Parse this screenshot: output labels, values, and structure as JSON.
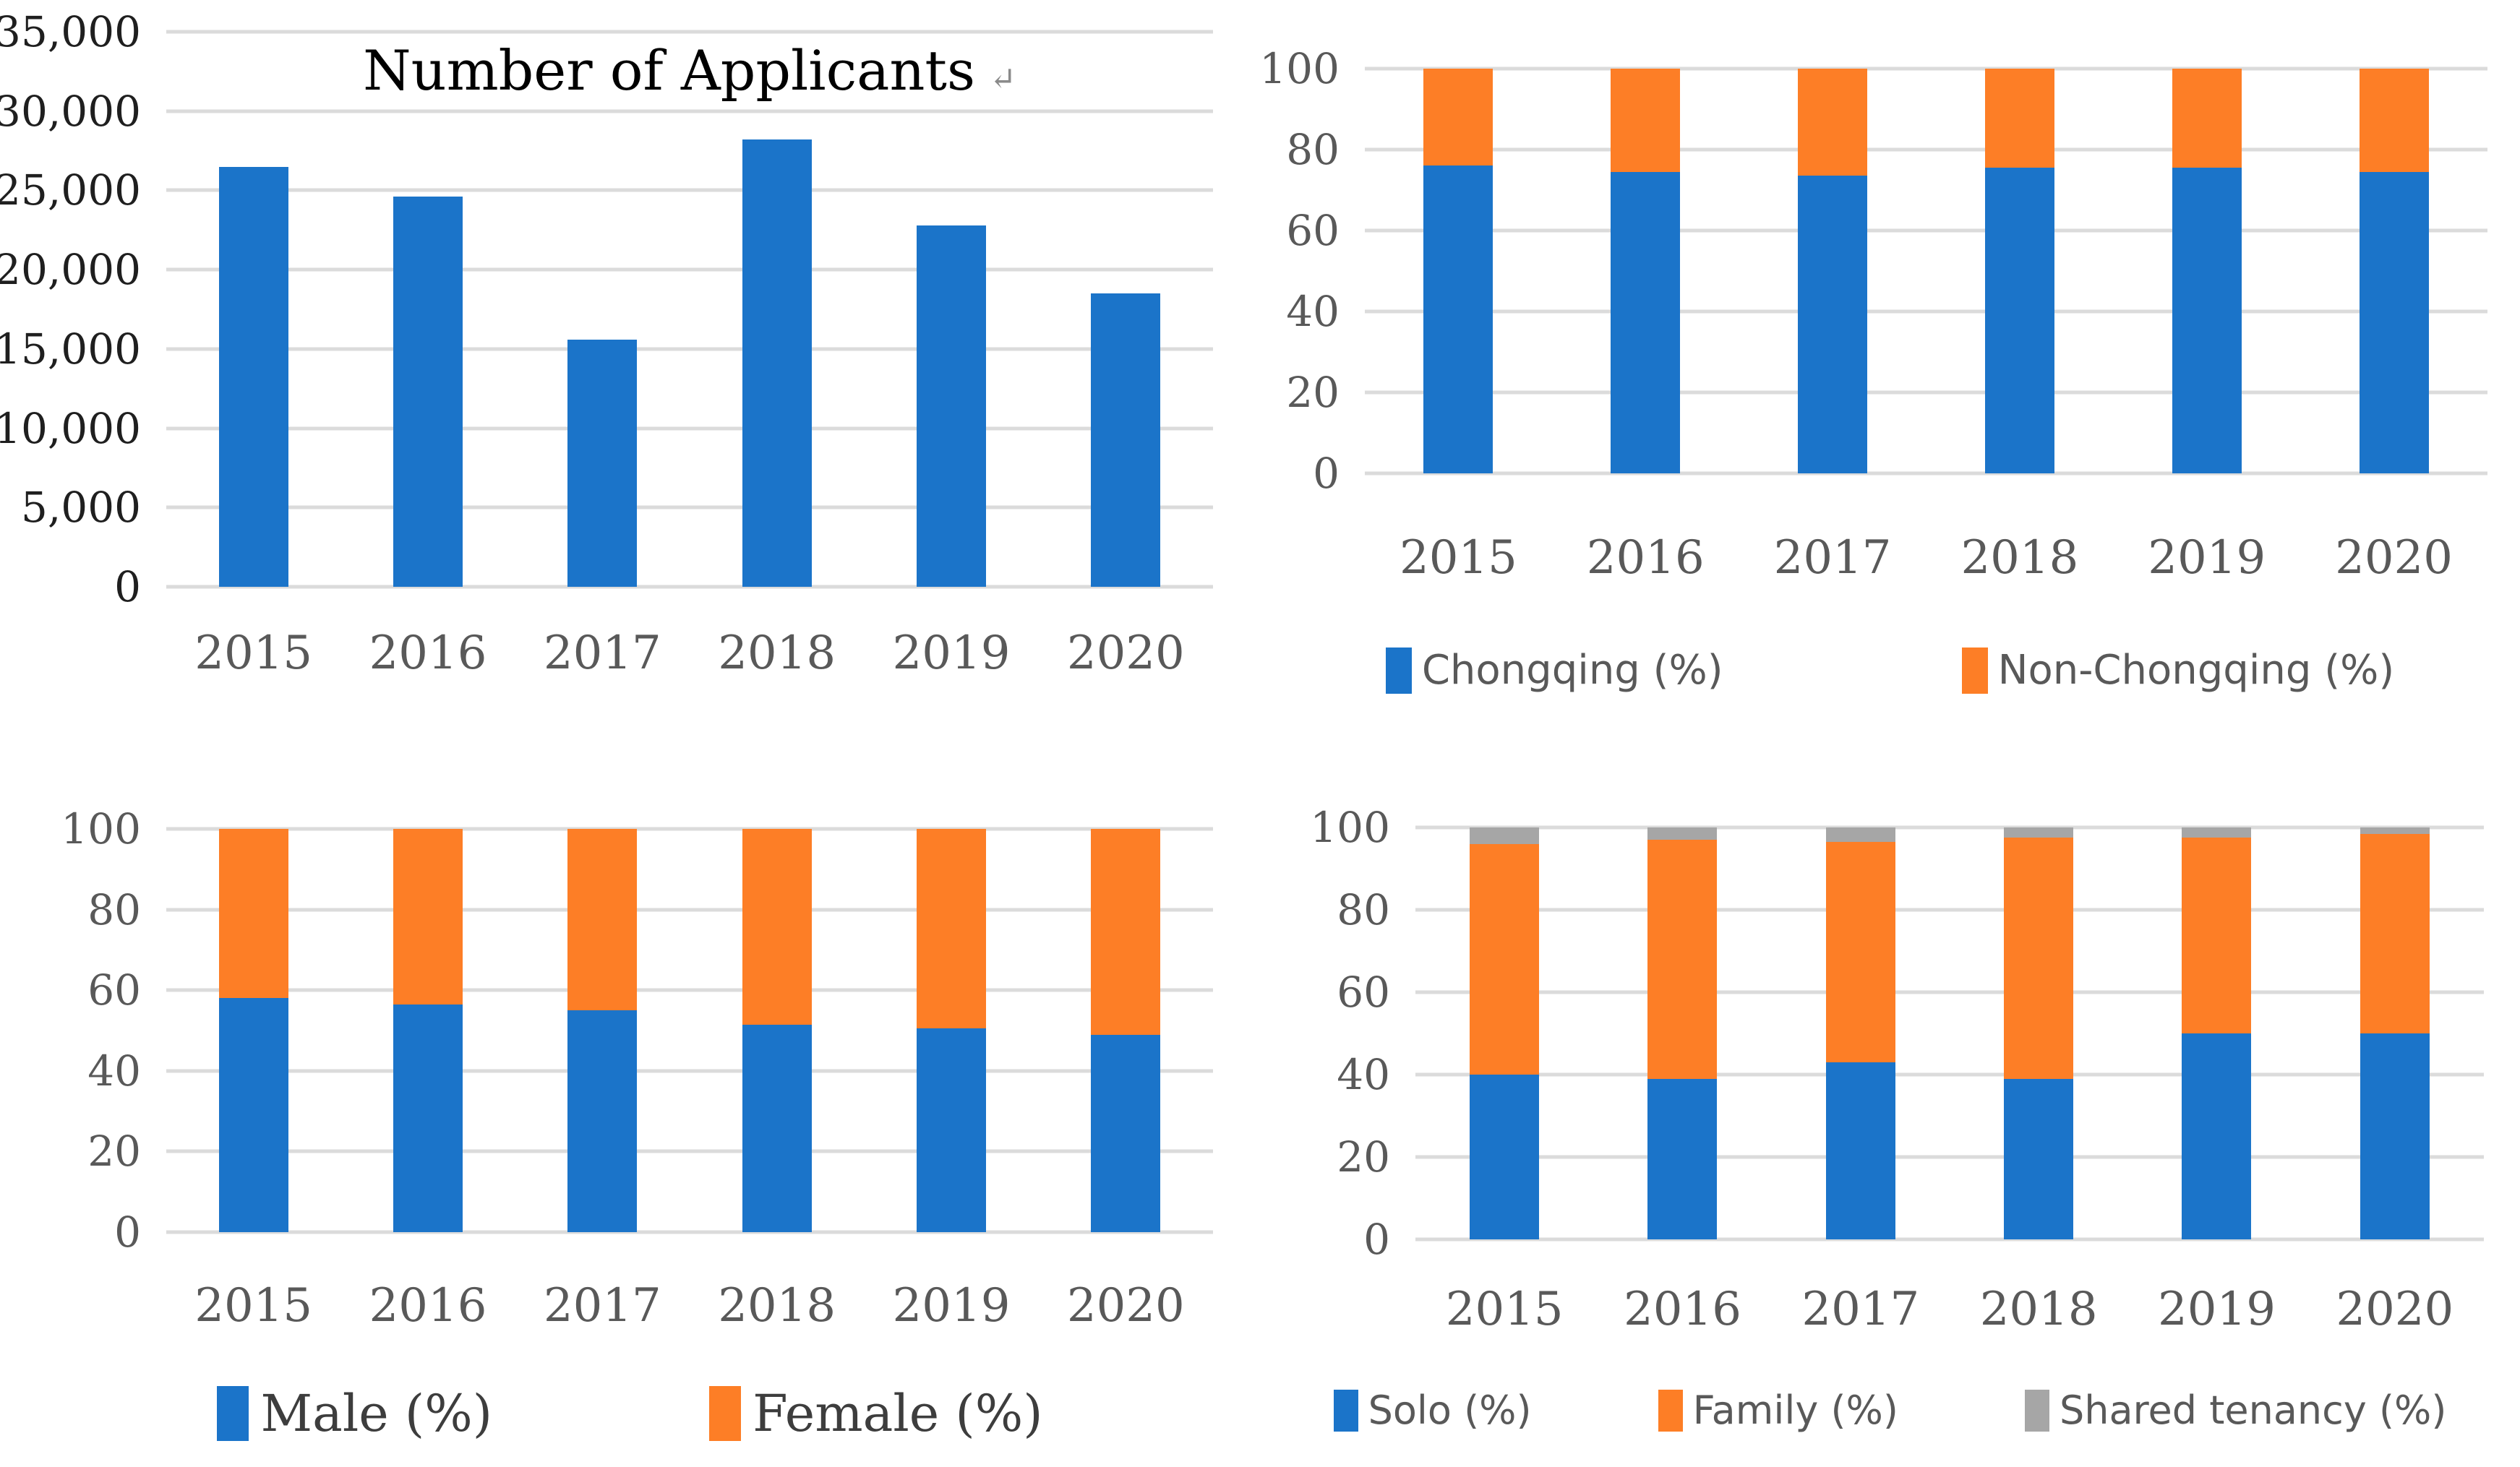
{
  "colors": {
    "blue": "#1B74C9",
    "orange": "#FD7E26",
    "gray": "#A6A6A6",
    "gridline": "#DBDBDB"
  },
  "chart_data": [
    {
      "type": "bar",
      "title": "Number of Applicants",
      "title_mark": "↵",
      "categories": [
        "2015",
        "2016",
        "2017",
        "2018",
        "2019",
        "2020"
      ],
      "series": [
        {
          "name": "Applicants",
          "color": "blue",
          "values": [
            26500,
            24600,
            15600,
            28200,
            22800,
            18500
          ]
        }
      ],
      "y_ticks": [
        "35,000",
        "30,000",
        "25,000",
        "20,000",
        "15,000",
        "10,000",
        "5,000",
        "0"
      ],
      "y_max": 35000,
      "grid": true,
      "legend": []
    },
    {
      "type": "stacked-bar",
      "title": "",
      "categories": [
        "2015",
        "2016",
        "2017",
        "2018",
        "2019",
        "2020"
      ],
      "series": [
        {
          "name": "Chongqing (%)",
          "color": "blue",
          "values": [
            76,
            74.5,
            73.5,
            75.5,
            75.5,
            74.5
          ]
        },
        {
          "name": "Non-Chongqing (%)",
          "color": "orange",
          "values": [
            24,
            25.5,
            26.5,
            24.5,
            24.5,
            25.5
          ]
        }
      ],
      "y_ticks": [
        "100",
        "80",
        "60",
        "40",
        "20",
        "0"
      ],
      "y_max": 100,
      "grid": true,
      "legend_position": "bottom",
      "legend": [
        {
          "label": "Chongqing (%)",
          "color": "blue"
        },
        {
          "label": "Non-Chongqing (%)",
          "color": "orange"
        }
      ]
    },
    {
      "type": "stacked-bar",
      "title": "",
      "categories": [
        "2015",
        "2016",
        "2017",
        "2018",
        "2019",
        "2020"
      ],
      "series": [
        {
          "name": "Male (%)",
          "color": "blue",
          "values": [
            58,
            56.5,
            55,
            51.5,
            50.5,
            49
          ]
        },
        {
          "name": "Female (%)",
          "color": "orange",
          "values": [
            42,
            43.5,
            45,
            48.5,
            49.5,
            51
          ]
        }
      ],
      "y_ticks": [
        "100",
        "80",
        "60",
        "40",
        "20",
        "0"
      ],
      "y_max": 100,
      "grid": true,
      "legend_position": "bottom",
      "legend": [
        {
          "label": "Male (%)",
          "color": "blue"
        },
        {
          "label": "Female (%)",
          "color": "orange"
        }
      ]
    },
    {
      "type": "stacked-bar",
      "title": "",
      "categories": [
        "2015",
        "2016",
        "2017",
        "2018",
        "2019",
        "2020"
      ],
      "series": [
        {
          "name": "Solo (%)",
          "color": "blue",
          "values": [
            40,
            39,
            43,
            39,
            50,
            50
          ]
        },
        {
          "name": "Family (%)",
          "color": "orange",
          "values": [
            56,
            58,
            53.5,
            58.5,
            47.5,
            48.5
          ]
        },
        {
          "name": "Shared tenancy (%)",
          "color": "gray",
          "values": [
            4,
            3,
            3.5,
            2.5,
            2.5,
            1.5
          ]
        }
      ],
      "y_ticks": [
        "100",
        "80",
        "60",
        "40",
        "20",
        "0"
      ],
      "y_max": 100,
      "grid": true,
      "legend_position": "bottom",
      "legend": [
        {
          "label": "Solo (%)",
          "color": "blue"
        },
        {
          "label": "Family (%)",
          "color": "orange"
        },
        {
          "label": "Shared tenancy (%)",
          "color": "gray"
        }
      ]
    }
  ]
}
